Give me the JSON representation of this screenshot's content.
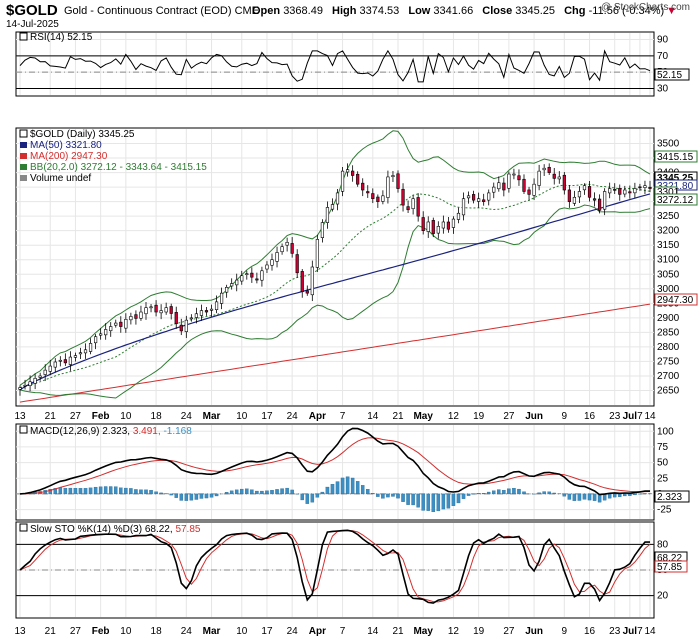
{
  "header": {
    "symbol": "$GOLD",
    "name": "Gold - Continuous Contract (EOD) CME",
    "date": "14-Jul-2025",
    "open_label": "Open",
    "open": "3368.49",
    "high_label": "High",
    "high": "3374.53",
    "low_label": "Low",
    "low": "3341.66",
    "close_label": "Close",
    "close": "3345.25",
    "chg_label": "Chg",
    "chg": "-11.56 (-0.34%)",
    "brand": "@ StockCharts.com"
  },
  "legends": {
    "rsi": "RSI(14) 52.15",
    "price": "$GOLD (Daily) 3345.25",
    "ma50": "MA(50) 3321.80",
    "ma200": "MA(200) 2947.30",
    "bb": "BB(20,2.0) 3272.12 - 3343.64 - 3415.15",
    "volume": "Volume undef",
    "macd_a": "MACD(12,26,9) 2.323,",
    "macd_b": "3.491,",
    "macd_c": "-1.168",
    "sto_a": "Slow STO %K(14) %D(3) 68.22,",
    "sto_b": "57.85"
  },
  "tags": {
    "rsi": "52.15",
    "bb_up": "3415.15",
    "close": "3345.25",
    "ma50": "3321.80",
    "mid": "3301",
    "bb_low": "3272.12",
    "ma200": "2947.30",
    "macd": "2.323",
    "sto_k": "68.22",
    "sto_d": "57.85"
  },
  "colors": {
    "up": "#ffffff",
    "down": "#cc0033",
    "ma50": "#1a237e",
    "ma200": "#d32f2f",
    "bb": "#2e7d32",
    "bb_mid": "#2e7d32",
    "rsi_fill": "#4caf50",
    "hist": "#3b8fc4"
  },
  "chart_data": {
    "type": "candlestick",
    "x_labels": [
      "13",
      "21",
      "27",
      "Feb",
      "10",
      "18",
      "24",
      "Mar",
      "10",
      "17",
      "24",
      "Apr",
      "7",
      "14",
      "21",
      "May",
      "12",
      "19",
      "27",
      "Jun",
      "9",
      "16",
      "23",
      "Jul",
      "7",
      "14"
    ],
    "bars": 126,
    "rsi": {
      "ylim": [
        0,
        100
      ],
      "ticks": [
        30,
        50,
        70,
        90
      ],
      "levels": [
        30,
        70
      ],
      "last": 52.15
    },
    "price": {
      "ylim": [
        2600,
        3550
      ],
      "ticks": [
        2650,
        2700,
        2750,
        2800,
        2850,
        2900,
        2950,
        3000,
        3050,
        3100,
        3150,
        3200,
        3250,
        3300,
        3350,
        3400,
        3450,
        3500
      ],
      "close": [
        2660,
        2668,
        2680,
        2692,
        2700,
        2720,
        2734,
        2748,
        2754,
        2745,
        2765,
        2770,
        2780,
        2790,
        2812,
        2835,
        2845,
        2860,
        2870,
        2882,
        2870,
        2895,
        2905,
        2898,
        2920,
        2935,
        2938,
        2920,
        2925,
        2935,
        2915,
        2880,
        2855,
        2892,
        2900,
        2914,
        2925,
        2920,
        2930,
        2955,
        2985,
        3005,
        3018,
        3030,
        3045,
        3052,
        3040,
        3030,
        3062,
        3082,
        3100,
        3125,
        3145,
        3160,
        3122,
        3055,
        2990,
        2985,
        3075,
        3170,
        3228,
        3280,
        3290,
        3330,
        3405,
        3410,
        3390,
        3360,
        3340,
        3330,
        3310,
        3300,
        3320,
        3385,
        3390,
        3345,
        3288,
        3272,
        3310,
        3250,
        3200,
        3230,
        3190,
        3215,
        3230,
        3205,
        3240,
        3260,
        3310,
        3320,
        3305,
        3310,
        3300,
        3330,
        3350,
        3365,
        3340,
        3395,
        3395,
        3375,
        3335,
        3325,
        3360,
        3405,
        3415,
        3400,
        3380,
        3385,
        3340,
        3300,
        3315,
        3335,
        3355,
        3315,
        3305,
        3270,
        3335,
        3345,
        3340,
        3325,
        3340,
        3330,
        3345,
        3350,
        3355,
        3345
      ]
    },
    "ma50": {
      "start": 2652,
      "end": 3321.8
    },
    "ma200": {
      "start": 2610,
      "end": 2947.3
    },
    "macd": {
      "ylim": [
        -40,
        110
      ],
      "ticks": [
        -25,
        0,
        25,
        50,
        75,
        100
      ],
      "last": [
        2.323,
        3.491,
        -1.168
      ]
    },
    "sto": {
      "ylim": [
        0,
        100
      ],
      "ticks": [
        20,
        50,
        80
      ],
      "levels": [
        20,
        80
      ],
      "last": [
        68.22,
        57.85
      ]
    }
  }
}
